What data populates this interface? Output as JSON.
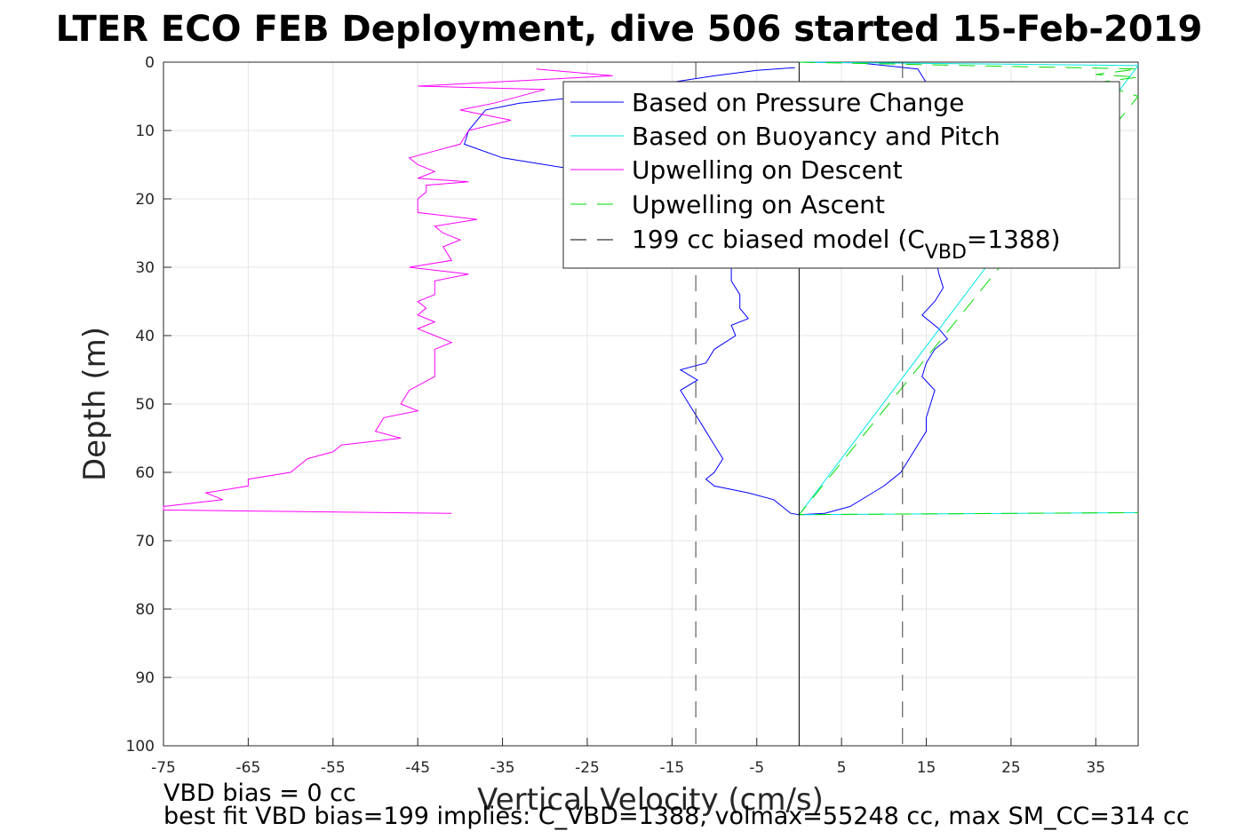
{
  "chart_data": {
    "type": "line",
    "title": "LTER ECO FEB Deployment, dive 506 started 15-Feb-2019",
    "xlabel": "Vertical Velocity (cm/s)",
    "ylabel": "Depth (m)",
    "xlim": [
      -75,
      40
    ],
    "ylim": [
      100,
      0
    ],
    "y_reversed": true,
    "grid": true,
    "legend_position": "top-right",
    "xticks": [
      "-75",
      "-65",
      "-55",
      "-45",
      "-35",
      "-25",
      "-15",
      "-5",
      "5",
      "15",
      "25",
      "35"
    ],
    "yticks": [
      "0",
      "10",
      "20",
      "30",
      "40",
      "50",
      "60",
      "70",
      "80",
      "90",
      "100"
    ],
    "legend": {
      "items": [
        {
          "label": "Based on Pressure Change",
          "color": "#0000ff",
          "dash": false
        },
        {
          "label": "Based on Buoyancy and Pitch",
          "color": "#00e6e6",
          "dash": false
        },
        {
          "label": "Upwelling on Descent",
          "color": "#ff00ff",
          "dash": false
        },
        {
          "label": "Upwelling on Ascent",
          "color": "#00dd00",
          "dash": true
        },
        {
          "label_main": "199 cc biased model (C",
          "label_sub": "VBD",
          "label_end": "=1388)",
          "color": "#000000",
          "dash": true
        }
      ]
    },
    "notes": {
      "line1": "VBD bias = 0 cc",
      "line2": "best fit VBD bias=199 implies: C_VBD=1388, volmax=55248 cc, max SM_CC=314 cc"
    },
    "series": [
      {
        "name": "Based on Pressure Change (descent)",
        "color": "#0000ff",
        "points": [
          [
            -0.5,
            0.8
          ],
          [
            -5,
            1.2
          ],
          [
            -10,
            2
          ],
          [
            -18,
            3.5
          ],
          [
            -25,
            5
          ],
          [
            -33,
            6
          ],
          [
            -37,
            7
          ],
          [
            -39,
            10
          ],
          [
            -39.5,
            12
          ],
          [
            -35,
            14
          ],
          [
            -25,
            16
          ],
          [
            -20,
            18
          ],
          [
            -16,
            20
          ],
          [
            -12,
            24
          ],
          [
            -9,
            27
          ],
          [
            -8,
            30
          ],
          [
            -8,
            32
          ],
          [
            -7,
            34
          ],
          [
            -7,
            36
          ],
          [
            -6,
            37.5
          ],
          [
            -8,
            38.5
          ],
          [
            -7.5,
            40
          ],
          [
            -10,
            42
          ],
          [
            -11,
            44
          ],
          [
            -14,
            45
          ],
          [
            -12,
            46.5
          ],
          [
            -14,
            48
          ],
          [
            -13,
            50
          ],
          [
            -12,
            52
          ],
          [
            -11,
            54
          ],
          [
            -10,
            56
          ],
          [
            -9,
            58
          ],
          [
            -10,
            60
          ],
          [
            -11,
            61
          ],
          [
            -10,
            62
          ],
          [
            -6,
            63
          ],
          [
            -3,
            64
          ],
          [
            -2,
            65
          ],
          [
            -1,
            66
          ],
          [
            0,
            66.2
          ]
        ]
      },
      {
        "name": "Based on Pressure Change (ascent)",
        "color": "#0000ff",
        "points": [
          [
            0,
            0
          ],
          [
            7,
            0.1
          ],
          [
            14,
            1
          ],
          [
            15,
            3
          ],
          [
            15.5,
            5
          ],
          [
            16,
            8
          ],
          [
            16,
            12
          ],
          [
            15,
            16
          ],
          [
            14.5,
            20
          ],
          [
            15,
            24
          ],
          [
            16,
            28
          ],
          [
            16.5,
            31
          ],
          [
            17,
            33
          ],
          [
            16,
            35
          ],
          [
            14.5,
            37
          ],
          [
            16.5,
            39
          ],
          [
            17.5,
            40.5
          ],
          [
            16,
            42
          ],
          [
            15,
            44
          ],
          [
            14.5,
            46
          ],
          [
            16,
            48
          ],
          [
            15.5,
            50
          ],
          [
            15,
            52
          ],
          [
            15,
            54
          ],
          [
            14,
            56
          ],
          [
            13,
            58
          ],
          [
            12,
            60
          ],
          [
            11,
            61
          ],
          [
            10,
            62
          ],
          [
            8,
            63.5
          ],
          [
            6,
            65
          ],
          [
            3,
            66
          ],
          [
            0,
            66.2
          ]
        ]
      },
      {
        "name": "Based on Buoyancy and Pitch",
        "color": "#00e6e6",
        "points": [
          [
            0,
            0
          ],
          [
            40,
            0.5
          ],
          [
            0,
            66.2
          ],
          [
            40,
            65.9
          ]
        ]
      },
      {
        "name": "Upwelling on Descent",
        "color": "#ff00ff",
        "points": [
          [
            -31,
            1
          ],
          [
            -22,
            2
          ],
          [
            -45,
            3.5
          ],
          [
            -30,
            4
          ],
          [
            -36,
            6
          ],
          [
            -40,
            7
          ],
          [
            -34,
            8.5
          ],
          [
            -39,
            10
          ],
          [
            -40,
            12
          ],
          [
            -46,
            14
          ],
          [
            -45,
            15
          ],
          [
            -43,
            16
          ],
          [
            -45,
            17
          ],
          [
            -39,
            17.5
          ],
          [
            -44,
            18
          ],
          [
            -44,
            19
          ],
          [
            -45,
            20
          ],
          [
            -45,
            22
          ],
          [
            -38,
            23
          ],
          [
            -43,
            24
          ],
          [
            -42,
            25
          ],
          [
            -40,
            26
          ],
          [
            -42,
            27
          ],
          [
            -41,
            29
          ],
          [
            -46,
            30
          ],
          [
            -39,
            31
          ],
          [
            -43,
            32
          ],
          [
            -43,
            34
          ],
          [
            -45,
            35
          ],
          [
            -44,
            36
          ],
          [
            -45,
            37
          ],
          [
            -43,
            38
          ],
          [
            -45,
            39
          ],
          [
            -43,
            40
          ],
          [
            -41,
            41
          ],
          [
            -43,
            42
          ],
          [
            -43,
            44
          ],
          [
            -43,
            46
          ],
          [
            -46,
            48
          ],
          [
            -47,
            50
          ],
          [
            -45,
            51
          ],
          [
            -49,
            52
          ],
          [
            -50,
            54
          ],
          [
            -47,
            55
          ],
          [
            -54,
            56
          ],
          [
            -55,
            57
          ],
          [
            -58,
            58
          ],
          [
            -60,
            60
          ],
          [
            -65,
            61
          ],
          [
            -65,
            62
          ],
          [
            -70,
            63
          ],
          [
            -68,
            64
          ],
          [
            -75,
            65
          ],
          [
            -75,
            65.5
          ],
          [
            -41,
            66
          ]
        ]
      },
      {
        "name": "Upwelling on Ascent",
        "color": "#00dd00",
        "dash": true,
        "points": [
          [
            0,
            0
          ],
          [
            40,
            1
          ],
          [
            35,
            1.8
          ],
          [
            40,
            2.2
          ],
          [
            35,
            3
          ],
          [
            40,
            5
          ],
          [
            0,
            66.2
          ],
          [
            40,
            65.9
          ]
        ]
      },
      {
        "name": "199 cc biased model (left)",
        "color": "#404040",
        "dash": true,
        "points": [
          [
            -12.2,
            0
          ],
          [
            -12.2,
            100
          ]
        ]
      },
      {
        "name": "199 cc biased model (right)",
        "color": "#404040",
        "dash": true,
        "points": [
          [
            12.2,
            0
          ],
          [
            12.2,
            100
          ]
        ]
      },
      {
        "name": "zero line",
        "color": "#000000",
        "points": [
          [
            0,
            0
          ],
          [
            0,
            100
          ]
        ]
      }
    ]
  }
}
